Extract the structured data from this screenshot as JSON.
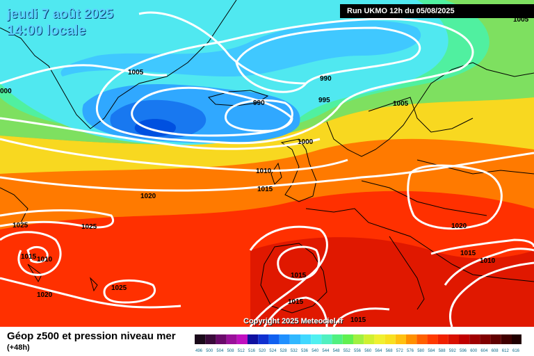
{
  "header": {
    "date_line": "jeudi 7 août 2025",
    "time_line": "14:00 locale",
    "run_label": "Run UKMO 12h du 05/08/2025"
  },
  "copyright": "Copyright 2025 Meteociel.fr",
  "footer": {
    "title": "Géop z500 et pression niveau mer",
    "subtitle": "(+48h)"
  },
  "colors": {
    "background_warm": "#ff3a00",
    "background_cold": "#0050e0",
    "isobars": "#ffffff",
    "coastlines": "#000000"
  },
  "legend_scale": {
    "labels": [
      "496",
      "500",
      "504",
      "508",
      "512",
      "516",
      "520",
      "524",
      "528",
      "532",
      "536",
      "540",
      "544",
      "548",
      "552",
      "556",
      "560",
      "564",
      "568",
      "572",
      "576",
      "580",
      "584",
      "588",
      "592",
      "596",
      "600",
      "604",
      "608",
      "612",
      "616"
    ],
    "colors": [
      "#1a0a1a",
      "#3a0a3a",
      "#6a0a6a",
      "#9a109a",
      "#c010c0",
      "#1010a0",
      "#1030d0",
      "#1060f0",
      "#2090ff",
      "#30b8ff",
      "#40d8ff",
      "#50f0f0",
      "#50f0c0",
      "#50f080",
      "#60f050",
      "#a0f040",
      "#d0f030",
      "#f0f030",
      "#f8e020",
      "#ffc010",
      "#ff9000",
      "#ff6000",
      "#ff3a00",
      "#f02000",
      "#d81000",
      "#c00000",
      "#a00000",
      "#800000",
      "#600000",
      "#400000",
      "#200000"
    ]
  },
  "isobar_labels": [
    {
      "text": "1005"
    },
    {
      "text": "990"
    },
    {
      "text": "995"
    },
    {
      "text": "990"
    },
    {
      "text": "1005"
    },
    {
      "text": "1000"
    },
    {
      "text": "1010"
    },
    {
      "text": "1015"
    },
    {
      "text": "1020"
    },
    {
      "text": "1025"
    },
    {
      "text": "1025"
    },
    {
      "text": "1015"
    },
    {
      "text": "1010"
    },
    {
      "text": "1025"
    },
    {
      "text": "1020"
    },
    {
      "text": "1015"
    },
    {
      "text": "1015"
    },
    {
      "text": "1015"
    },
    {
      "text": "1020"
    },
    {
      "text": "1015"
    },
    {
      "text": "1010"
    },
    {
      "text": "000"
    },
    {
      "text": "1005"
    }
  ]
}
